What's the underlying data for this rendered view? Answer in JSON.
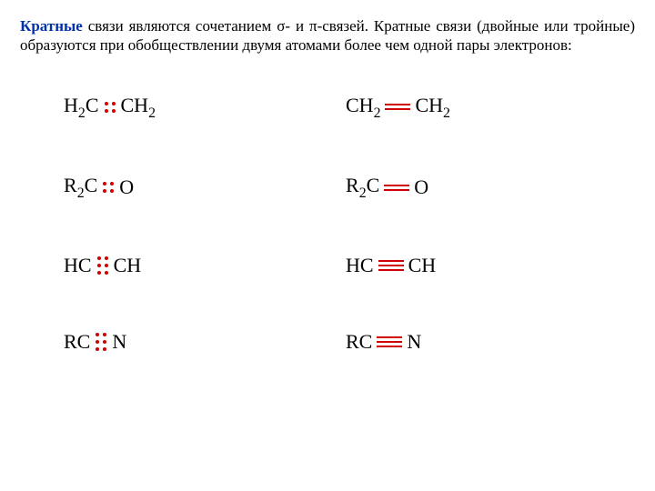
{
  "intro": {
    "lead": "Кратные",
    "rest1": " связи являются сочетанием ",
    "sigma": "σ",
    "dash": "- и ",
    "pi": "π",
    "rest2": "-связей. Кратные связи (двойные или тройные) образуются при обобществлении двумя атомами более чем одной пары электронов:"
  },
  "rows": [
    {
      "left": "H2C_dots2_CH2",
      "right": "CH2_bond2_CH2"
    },
    {
      "left": "R2C_dots2_O",
      "right": "R2C_bond2_O"
    },
    {
      "left": "HC_dots3_CH",
      "right": "HC_bond3_CH"
    },
    {
      "left": "RC_dots3_N",
      "right": "RC_bond3_N"
    }
  ],
  "atoms": {
    "H2C": [
      "H",
      "2",
      "C"
    ],
    "CH2": [
      "C",
      "H",
      "2"
    ],
    "R2C": [
      "R",
      "2",
      "C"
    ],
    "O": [
      "O"
    ],
    "HC": [
      "H",
      "C"
    ],
    "CH": [
      "C",
      "H"
    ],
    "RC": [
      "R",
      "C"
    ],
    "N": [
      "N"
    ]
  },
  "colors": {
    "bond": "#d10000",
    "lead": "#0033aa",
    "text": "#000000",
    "bg": "#ffffff"
  }
}
